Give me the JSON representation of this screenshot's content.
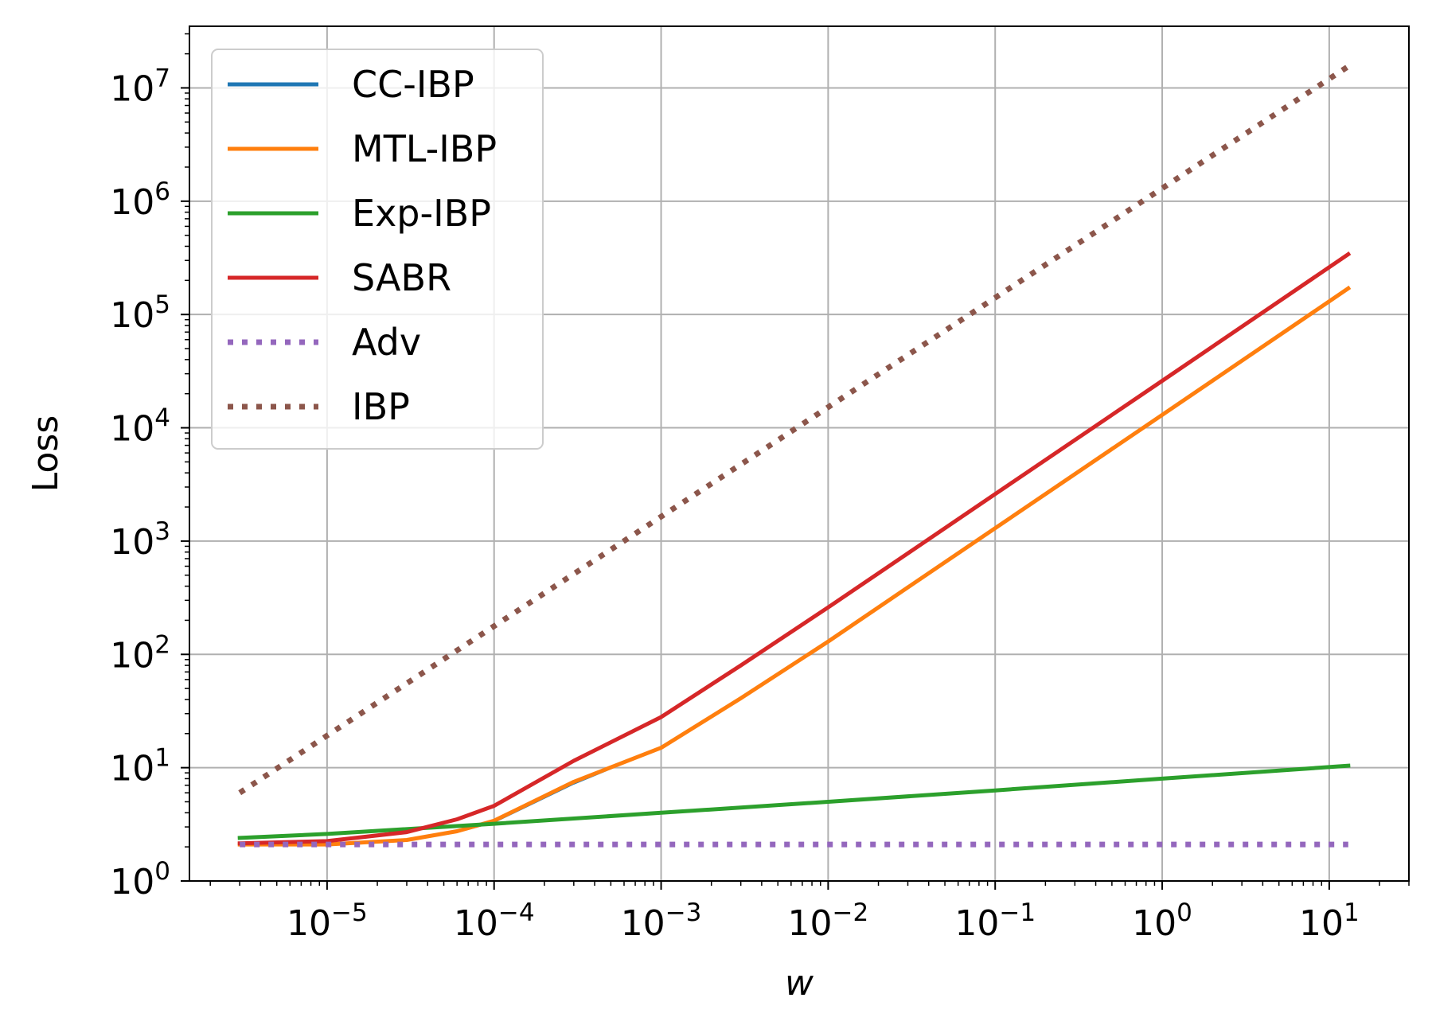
{
  "chart_data": {
    "type": "line",
    "title": "",
    "xlabel": "w",
    "ylabel": "Loss",
    "xscale": "log",
    "yscale": "log",
    "xlim": [
      1.5e-06,
      30
    ],
    "ylim": [
      1,
      35000000.0
    ],
    "grid": true,
    "legend_position": "top-left",
    "x_ticks": [
      {
        "value": 1e-05,
        "base": "10",
        "exp": "−5"
      },
      {
        "value": 0.0001,
        "base": "10",
        "exp": "−4"
      },
      {
        "value": 0.001,
        "base": "10",
        "exp": "−3"
      },
      {
        "value": 0.01,
        "base": "10",
        "exp": "−2"
      },
      {
        "value": 0.1,
        "base": "10",
        "exp": "−1"
      },
      {
        "value": 1,
        "base": "10",
        "exp": "0"
      },
      {
        "value": 10,
        "base": "10",
        "exp": "1"
      }
    ],
    "y_ticks": [
      {
        "value": 1,
        "base": "10",
        "exp": "0"
      },
      {
        "value": 10,
        "base": "10",
        "exp": "1"
      },
      {
        "value": 100,
        "base": "10",
        "exp": "2"
      },
      {
        "value": 1000,
        "base": "10",
        "exp": "3"
      },
      {
        "value": 10000,
        "base": "10",
        "exp": "4"
      },
      {
        "value": 100000,
        "base": "10",
        "exp": "5"
      },
      {
        "value": 1000000,
        "base": "10",
        "exp": "6"
      },
      {
        "value": 10000000,
        "base": "10",
        "exp": "7"
      }
    ],
    "series": [
      {
        "name": "CC-IBP",
        "color": "#1f77b4",
        "style": "solid",
        "x": [
          3e-06,
          1e-05,
          3e-05,
          6e-05,
          0.0001,
          0.0003,
          0.001,
          0.003,
          0.01,
          0.03,
          0.1,
          1,
          13
        ],
        "y": [
          2.1,
          2.1,
          2.3,
          2.7,
          3.3,
          7.2,
          15,
          41,
          130,
          390,
          1300,
          13000,
          170000
        ]
      },
      {
        "name": "MTL-IBP",
        "color": "#ff7f0e",
        "style": "solid",
        "x": [
          3e-06,
          1e-05,
          3e-05,
          6e-05,
          0.0001,
          0.0003,
          0.001,
          0.003,
          0.01,
          0.03,
          0.1,
          1,
          13
        ],
        "y": [
          2.1,
          2.1,
          2.3,
          2.75,
          3.4,
          7.5,
          15,
          41,
          130,
          390,
          1300,
          13000,
          170000
        ]
      },
      {
        "name": "Exp-IBP",
        "color": "#2ca02c",
        "style": "solid",
        "x": [
          3e-06,
          1e-05,
          0.0001,
          0.001,
          0.01,
          0.1,
          1,
          13
        ],
        "y": [
          2.4,
          2.6,
          3.2,
          4.0,
          5.0,
          6.3,
          8.0,
          10.4
        ]
      },
      {
        "name": "SABR",
        "color": "#d62728",
        "style": "solid",
        "x": [
          3e-06,
          1e-05,
          3e-05,
          6e-05,
          0.0001,
          0.0003,
          0.001,
          0.003,
          0.01,
          0.03,
          0.1,
          1,
          13
        ],
        "y": [
          2.15,
          2.25,
          2.7,
          3.5,
          4.6,
          11.5,
          28,
          80,
          260,
          780,
          2600,
          26000,
          340000
        ]
      },
      {
        "name": "Adv",
        "color": "#9467bd",
        "style": "dotted",
        "x": [
          3e-06,
          13
        ],
        "y": [
          2.1,
          2.1
        ]
      },
      {
        "name": "IBP",
        "color": "#8c564b",
        "style": "dotted",
        "x": [
          3e-06,
          13
        ],
        "y": [
          6,
          15500000
        ]
      }
    ]
  }
}
